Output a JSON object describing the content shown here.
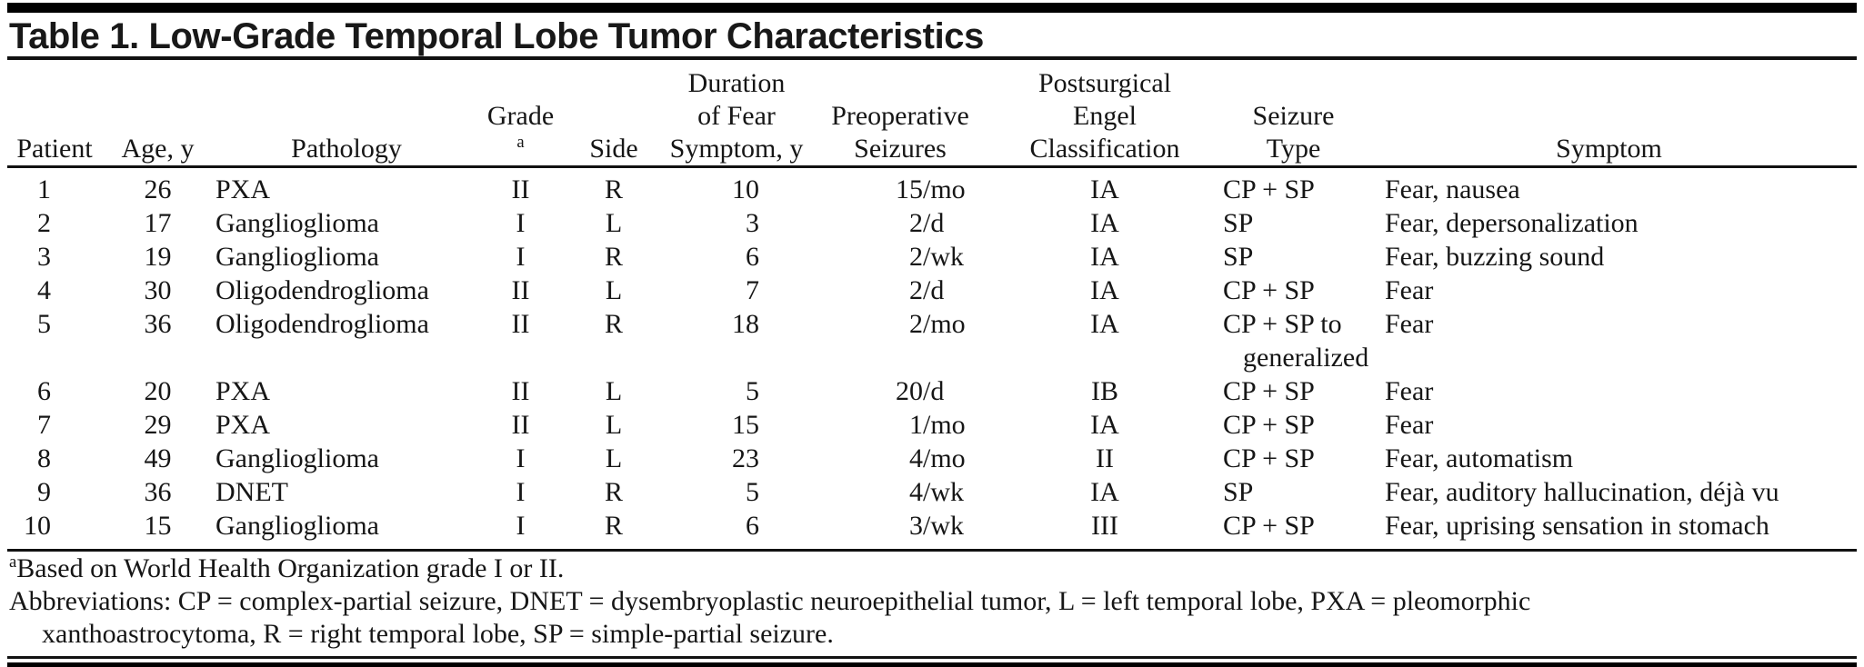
{
  "title": "Table 1. Low-Grade Temporal Lobe Tumor Characteristics",
  "columns": {
    "patient": {
      "line3": "Patient"
    },
    "age": {
      "line3": "Age, y"
    },
    "pathology": {
      "line3": "Pathology"
    },
    "grade": {
      "line3": "Grade",
      "superscript": "a"
    },
    "side": {
      "line3": "Side"
    },
    "duration": {
      "line1": "Duration",
      "line2": "of Fear",
      "line3": "Symptom, y"
    },
    "preop": {
      "line2": "Preoperative",
      "line3": "Seizures"
    },
    "engel": {
      "line1": "Postsurgical",
      "line2": "Engel",
      "line3": "Classification"
    },
    "seizure": {
      "line2": "Seizure",
      "line3": "Type"
    },
    "symptom": {
      "line3": "Symptom"
    }
  },
  "rows": [
    {
      "patient": "1",
      "age": "26",
      "pathology": "PXA",
      "grade": "II",
      "side": "R",
      "duration": "10",
      "preop_num": "15",
      "preop_unit": "/mo",
      "engel": "IA",
      "seizure_type": [
        "CP + SP"
      ],
      "symptom": "Fear, nausea"
    },
    {
      "patient": "2",
      "age": "17",
      "pathology": "Ganglioglioma",
      "grade": "I",
      "side": "L",
      "duration": "3",
      "preop_num": "2",
      "preop_unit": "/d",
      "engel": "IA",
      "seizure_type": [
        "SP"
      ],
      "symptom": "Fear, depersonalization"
    },
    {
      "patient": "3",
      "age": "19",
      "pathology": "Ganglioglioma",
      "grade": "I",
      "side": "R",
      "duration": "6",
      "preop_num": "2",
      "preop_unit": "/wk",
      "engel": "IA",
      "seizure_type": [
        "SP"
      ],
      "symptom": "Fear, buzzing sound"
    },
    {
      "patient": "4",
      "age": "30",
      "pathology": "Oligodendroglioma",
      "grade": "II",
      "side": "L",
      "duration": "7",
      "preop_num": "2",
      "preop_unit": "/d",
      "engel": "IA",
      "seizure_type": [
        "CP + SP"
      ],
      "symptom": "Fear"
    },
    {
      "patient": "5",
      "age": "36",
      "pathology": "Oligodendroglioma",
      "grade": "II",
      "side": "R",
      "duration": "18",
      "preop_num": "2",
      "preop_unit": "/mo",
      "engel": "IA",
      "seizure_type": [
        "CP + SP to",
        "generalized"
      ],
      "symptom": "Fear"
    },
    {
      "patient": "6",
      "age": "20",
      "pathology": "PXA",
      "grade": "II",
      "side": "L",
      "duration": "5",
      "preop_num": "20",
      "preop_unit": "/d",
      "engel": "IB",
      "seizure_type": [
        "CP + SP"
      ],
      "symptom": "Fear"
    },
    {
      "patient": "7",
      "age": "29",
      "pathology": "PXA",
      "grade": "II",
      "side": "L",
      "duration": "15",
      "preop_num": "1",
      "preop_unit": "/mo",
      "engel": "IA",
      "seizure_type": [
        "CP + SP"
      ],
      "symptom": "Fear"
    },
    {
      "patient": "8",
      "age": "49",
      "pathology": "Ganglioglioma",
      "grade": "I",
      "side": "L",
      "duration": "23",
      "preop_num": "4",
      "preop_unit": "/mo",
      "engel": "II",
      "seizure_type": [
        "CP + SP"
      ],
      "symptom": "Fear, automatism"
    },
    {
      "patient": "9",
      "age": "36",
      "pathology": "DNET",
      "grade": "I",
      "side": "R",
      "duration": "5",
      "preop_num": "4",
      "preop_unit": "/wk",
      "engel": "IA",
      "seizure_type": [
        "SP"
      ],
      "symptom": "Fear, auditory hallucination, déjà vu"
    },
    {
      "patient": "10",
      "age": "15",
      "pathology": "Ganglioglioma",
      "grade": "I",
      "side": "R",
      "duration": "6",
      "preop_num": "3",
      "preop_unit": "/wk",
      "engel": "III",
      "seizure_type": [
        "CP + SP"
      ],
      "symptom": "Fear, uprising sensation in stomach"
    }
  ],
  "footnotes": {
    "marker": "a",
    "based": "Based on World Health Organization grade I or II.",
    "abbreviation_lines": [
      "Abbreviations: CP = complex-partial seizure, DNET = dysembryoplastic neuroepithelial tumor, L = left temporal lobe, PXA = pleomorphic",
      "xanthoastrocytoma, R = right temporal lobe, SP = simple-partial seizure."
    ]
  },
  "colors": {
    "background": "#ffffff",
    "text": "#161616",
    "rule": "#111111"
  }
}
